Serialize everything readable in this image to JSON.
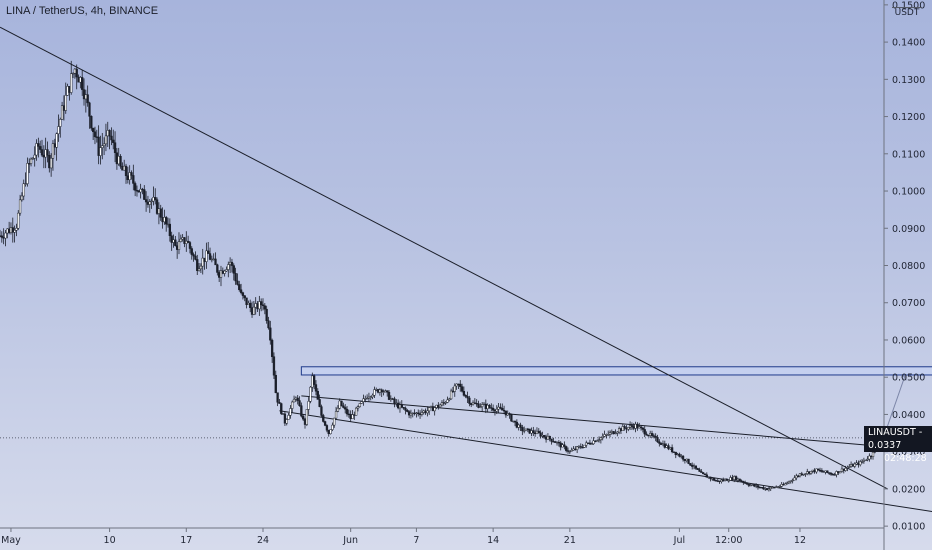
{
  "header": {
    "title": "LINA / TetherUS, 4h, BINANCE"
  },
  "price_badge": {
    "symbol": "LINAUSDT",
    "price": "0.0337",
    "countdown": "02:48:28"
  },
  "colors": {
    "candle": "#1b1f2a",
    "line": "#1b1f2a",
    "zone_fill": "#c4d0f2",
    "zone_stroke": "#1f3a8a",
    "projection": "#7c86a8"
  },
  "chart_data": {
    "type": "candlestick",
    "title": "LINA / TetherUS, 4h, BINANCE",
    "y_unit": "USDT",
    "ylim": [
      0.0095,
      0.1505
    ],
    "y_ticks": [
      "0.1500",
      "0.1400",
      "0.1300",
      "0.1200",
      "0.1100",
      "0.1000",
      "0.0900",
      "0.0800",
      "0.0700",
      "0.0600",
      "0.0500",
      "0.0400",
      "0.0300",
      "0.0200",
      "0.0100"
    ],
    "x_ticks": [
      "May",
      "10",
      "17",
      "24",
      "Jun",
      "7",
      "14",
      "21",
      "Jul",
      "12:00",
      "12"
    ],
    "x_tick_days": [
      1,
      10,
      17,
      24,
      32,
      38,
      45,
      52,
      62,
      66.5,
      73
    ],
    "xlim": [
      0,
      77.5
    ],
    "current_price": 0.0337,
    "price_path": [
      [
        0.0,
        0.088
      ],
      [
        1.5,
        0.091
      ],
      [
        2.5,
        0.106
      ],
      [
        3.5,
        0.112
      ],
      [
        4.5,
        0.108
      ],
      [
        5.2,
        0.116
      ],
      [
        6.0,
        0.125
      ],
      [
        6.8,
        0.133
      ],
      [
        7.5,
        0.129
      ],
      [
        8.3,
        0.119
      ],
      [
        9.0,
        0.111
      ],
      [
        10.0,
        0.115
      ],
      [
        11.0,
        0.106
      ],
      [
        12.0,
        0.103
      ],
      [
        13.0,
        0.099
      ],
      [
        14.0,
        0.097
      ],
      [
        15.0,
        0.092
      ],
      [
        16.0,
        0.085
      ],
      [
        17.0,
        0.087
      ],
      [
        18.0,
        0.08
      ],
      [
        19.0,
        0.083
      ],
      [
        20.0,
        0.078
      ],
      [
        21.0,
        0.081
      ],
      [
        22.0,
        0.072
      ],
      [
        23.0,
        0.068
      ],
      [
        24.0,
        0.07
      ],
      [
        24.6,
        0.063
      ],
      [
        25.2,
        0.045
      ],
      [
        26.0,
        0.038
      ],
      [
        27.0,
        0.045
      ],
      [
        27.8,
        0.037
      ],
      [
        28.5,
        0.05
      ],
      [
        29.3,
        0.04
      ],
      [
        30.0,
        0.035
      ],
      [
        31.0,
        0.043
      ],
      [
        32.0,
        0.039
      ],
      [
        33.5,
        0.045
      ],
      [
        34.8,
        0.047
      ],
      [
        36.0,
        0.043
      ],
      [
        37.5,
        0.04
      ],
      [
        39.0,
        0.041
      ],
      [
        40.5,
        0.043
      ],
      [
        41.8,
        0.048
      ],
      [
        43.0,
        0.043
      ],
      [
        44.5,
        0.042
      ],
      [
        46.0,
        0.041
      ],
      [
        47.5,
        0.036
      ],
      [
        49.0,
        0.035
      ],
      [
        50.5,
        0.033
      ],
      [
        52.0,
        0.03
      ],
      [
        53.5,
        0.032
      ],
      [
        55.0,
        0.034
      ],
      [
        56.5,
        0.036
      ],
      [
        58.0,
        0.037
      ],
      [
        59.5,
        0.034
      ],
      [
        61.0,
        0.031
      ],
      [
        62.5,
        0.028
      ],
      [
        64.0,
        0.024
      ],
      [
        65.5,
        0.022
      ],
      [
        67.0,
        0.023
      ],
      [
        68.5,
        0.021
      ],
      [
        70.0,
        0.02
      ],
      [
        71.5,
        0.021
      ],
      [
        73.0,
        0.024
      ],
      [
        74.5,
        0.025
      ],
      [
        76.0,
        0.024
      ],
      [
        77.5,
        0.026
      ],
      [
        78.5,
        0.027
      ],
      [
        79.5,
        0.029
      ],
      [
        80.0,
        0.033
      ],
      [
        80.4,
        0.0337
      ]
    ],
    "drawings": {
      "long_downtrend_line": [
        [
          0.0,
          0.144
        ],
        [
          81.0,
          0.02
        ]
      ],
      "channel_upper": [
        [
          27.5,
          0.045
        ],
        [
          86.0,
          0.03
        ]
      ],
      "channel_lower": [
        [
          25.5,
          0.041
        ],
        [
          86.0,
          0.0135
        ]
      ],
      "resistance_zone": {
        "from_day": 27.5,
        "to_day": 88.0,
        "low": 0.0506,
        "high": 0.0528
      },
      "projection_arrow": [
        [
          80.6,
          0.0336
        ],
        [
          82.6,
          0.0505
        ]
      ]
    }
  }
}
